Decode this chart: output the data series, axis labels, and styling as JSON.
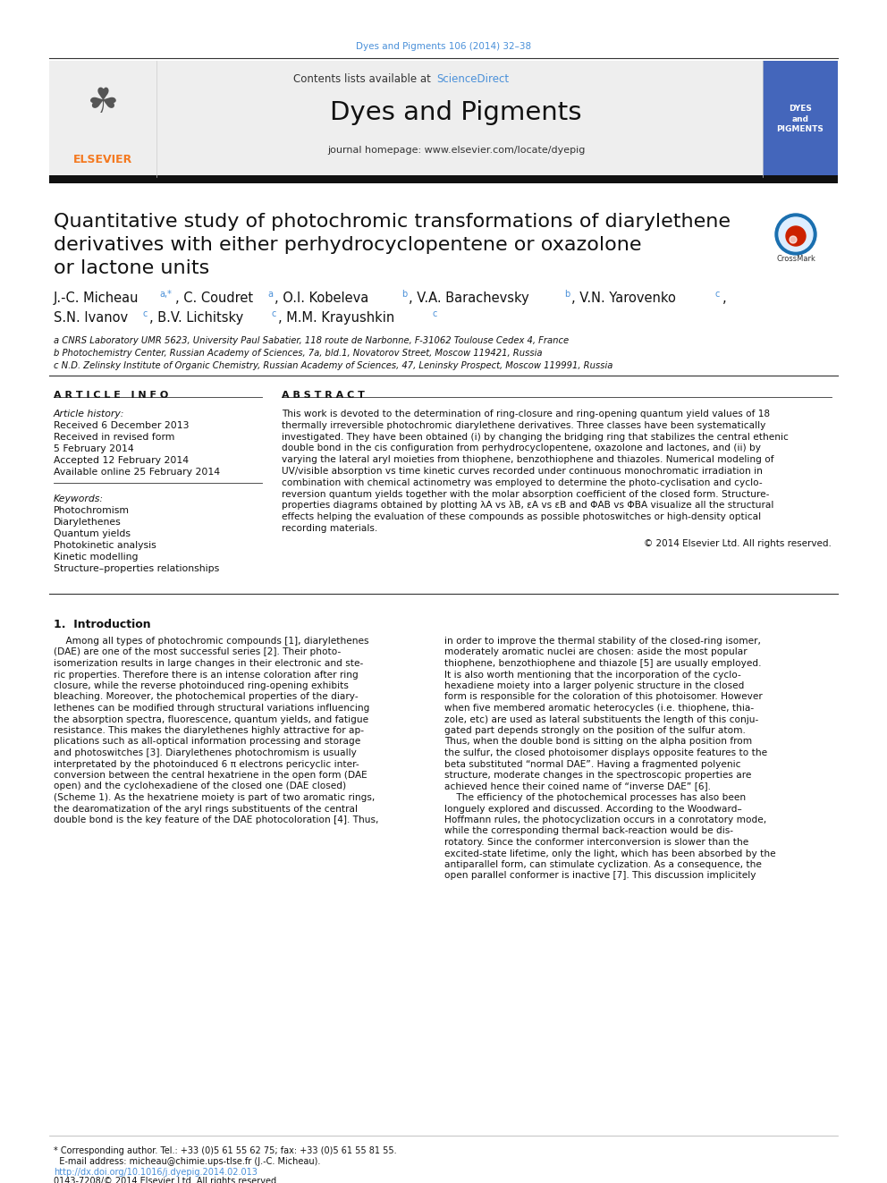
{
  "page_title_top": "Dyes and Pigments 106 (2014) 32–38",
  "journal_name": "Dyes and Pigments",
  "contents_text": "Contents lists available at ScienceDirect",
  "homepage_text": "journal homepage: www.elsevier.com/locate/dyepig",
  "sciencedirect_color": "#4a90d9",
  "article_title_line1": "Quantitative study of photochromic transformations of diarylethene",
  "article_title_line2": "derivatives with either perhydrocyclopentene or oxazolone",
  "article_title_line3": "or lactone units",
  "affil_a": "a CNRS Laboratory UMR 5623, University Paul Sabatier, 118 route de Narbonne, F-31062 Toulouse Cedex 4, France",
  "affil_b": "b Photochemistry Center, Russian Academy of Sciences, 7a, bld.1, Novatorov Street, Moscow 119421, Russia",
  "affil_c": "c N.D. Zelinsky Institute of Organic Chemistry, Russian Academy of Sciences, 47, Leninsky Prospect, Moscow 119991, Russia",
  "article_info_header": "A R T I C L E   I N F O",
  "article_history_header": "Article history:",
  "history_items": [
    "Received 6 December 2013",
    "Received in revised form",
    "5 February 2014",
    "Accepted 12 February 2014",
    "Available online 25 February 2014"
  ],
  "keywords_header": "Keywords:",
  "keywords": [
    "Photochromism",
    "Diarylethenes",
    "Quantum yields",
    "Photokinetic analysis",
    "Kinetic modelling",
    "Structure–properties relationships"
  ],
  "abstract_header": "A B S T R A C T",
  "abstract_lines": [
    "This work is devoted to the determination of ring-closure and ring-opening quantum yield values of 18",
    "thermally irreversible photochromic diarylethene derivatives. Three classes have been systematically",
    "investigated. They have been obtained (i) by changing the bridging ring that stabilizes the central ethenic",
    "double bond in the cis configuration from perhydrocyclopentene, oxazolone and lactones, and (ii) by",
    "varying the lateral aryl moieties from thiophene, benzothiophene and thiazoles. Numerical modeling of",
    "UV/visible absorption vs time kinetic curves recorded under continuous monochromatic irradiation in",
    "combination with chemical actinometry was employed to determine the photo-cyclisation and cyclo-",
    "reversion quantum yields together with the molar absorption coefficient of the closed form. Structure-",
    "properties diagrams obtained by plotting λA vs λB, εA vs εB and ΦAB vs ΦBA visualize all the structural",
    "effects helping the evaluation of these compounds as possible photoswitches or high-density optical",
    "recording materials."
  ],
  "copyright_text": "© 2014 Elsevier Ltd. All rights reserved.",
  "intro_header": "1.  Introduction",
  "intro_col1_lines": [
    "    Among all types of photochromic compounds [1], diarylethenes",
    "(DAE) are one of the most successful series [2]. Their photo-",
    "isomerization results in large changes in their electronic and ste-",
    "ric properties. Therefore there is an intense coloration after ring",
    "closure, while the reverse photoinduced ring-opening exhibits",
    "bleaching. Moreover, the photochemical properties of the diary-",
    "lethenes can be modified through structural variations influencing",
    "the absorption spectra, fluorescence, quantum yields, and fatigue",
    "resistance. This makes the diarylethenes highly attractive for ap-",
    "plications such as all-optical information processing and storage",
    "and photoswitches [3]. Diarylethenes photochromism is usually",
    "interpretated by the photoinduced 6 π electrons pericyclic inter-",
    "conversion between the central hexatriene in the open form (DAE",
    "open) and the cyclohexadiene of the closed one (DAE closed)",
    "(Scheme 1). As the hexatriene moiety is part of two aromatic rings,",
    "the dearomatization of the aryl rings substituents of the central",
    "double bond is the key feature of the DAE photocoloration [4]. Thus,"
  ],
  "intro_col2_lines": [
    "in order to improve the thermal stability of the closed-ring isomer,",
    "moderately aromatic nuclei are chosen: aside the most popular",
    "thiophene, benzothiophene and thiazole [5] are usually employed.",
    "It is also worth mentioning that the incorporation of the cyclo-",
    "hexadiene moiety into a larger polyenic structure in the closed",
    "form is responsible for the coloration of this photoisomer. However",
    "when five membered aromatic heterocycles (i.e. thiophene, thia-",
    "zole, etc) are used as lateral substituents the length of this conju-",
    "gated part depends strongly on the position of the sulfur atom.",
    "Thus, when the double bond is sitting on the alpha position from",
    "the sulfur, the closed photoisomer displays opposite features to the",
    "beta substituted “normal DAE”. Having a fragmented polyenic",
    "structure, moderate changes in the spectroscopic properties are",
    "achieved hence their coined name of “inverse DAE” [6].",
    "    The efficiency of the photochemical processes has also been",
    "longuely explored and discussed. According to the Woodward–",
    "Hoffmann rules, the photocyclization occurs in a conrotatory mode,",
    "while the corresponding thermal back-reaction would be dis-",
    "rotatory. Since the conformer interconversion is slower than the",
    "excited-state lifetime, only the light, which has been absorbed by the",
    "antiparallel form, can stimulate cyclization. As a consequence, the",
    "open parallel conformer is inactive [7]. This discussion implicitely"
  ],
  "footnote_line1": "* Corresponding author. Tel.: +33 (0)5 61 55 62 75; fax: +33 (0)5 61 55 81 55.",
  "footnote_line2": "  E-mail address: micheau@chimie.ups-tlse.fr (J.-C. Micheau).",
  "doi_text": "http://dx.doi.org/10.1016/j.dyepig.2014.02.013",
  "issn_text": "0143-7208/© 2014 Elsevier Ltd. All rights reserved.",
  "bg_color": "#ffffff",
  "elsevier_orange": "#f47920",
  "link_color": "#4a90d9",
  "text_color": "#111111",
  "rule_color": "#333333"
}
